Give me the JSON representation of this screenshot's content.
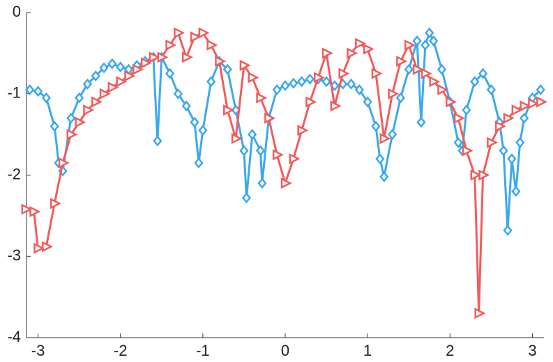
{
  "chart_data": {
    "type": "line",
    "xlim": [
      -3.14,
      3.14
    ],
    "ylim": [
      -4,
      0
    ],
    "xticks": [
      -3,
      -2,
      -1,
      0,
      1,
      2,
      3
    ],
    "yticks": [
      -4,
      -3,
      -2,
      -1,
      0
    ],
    "series": [
      {
        "name": "diamonds",
        "marker": "diamond",
        "color": "#3ca8f0",
        "x": [
          -3.1,
          -3.0,
          -2.9,
          -2.8,
          -2.75,
          -2.7,
          -2.6,
          -2.5,
          -2.4,
          -2.3,
          -2.2,
          -2.1,
          -2.0,
          -1.9,
          -1.8,
          -1.7,
          -1.6,
          -1.55,
          -1.5,
          -1.4,
          -1.3,
          -1.2,
          -1.1,
          -1.05,
          -1.0,
          -0.9,
          -0.8,
          -0.7,
          -0.6,
          -0.5,
          -0.47,
          -0.4,
          -0.3,
          -0.28,
          -0.2,
          -0.1,
          0,
          0.1,
          0.2,
          0.3,
          0.4,
          0.5,
          0.6,
          0.7,
          0.8,
          0.9,
          1.0,
          1.1,
          1.15,
          1.2,
          1.3,
          1.4,
          1.5,
          1.6,
          1.65,
          1.7,
          1.75,
          1.8,
          1.9,
          2.0,
          2.1,
          2.15,
          2.2,
          2.3,
          2.4,
          2.5,
          2.6,
          2.65,
          2.7,
          2.75,
          2.8,
          2.85,
          2.9,
          3.0,
          3.1
        ],
        "values": [
          -0.95,
          -0.97,
          -1.05,
          -1.4,
          -1.85,
          -1.95,
          -1.3,
          -1.05,
          -0.88,
          -0.78,
          -0.68,
          -0.63,
          -0.67,
          -0.7,
          -0.65,
          -0.6,
          -0.55,
          -1.58,
          -0.55,
          -0.75,
          -1.0,
          -1.15,
          -1.35,
          -1.85,
          -1.45,
          -0.85,
          -0.6,
          -0.7,
          -1.2,
          -1.7,
          -2.28,
          -1.5,
          -1.7,
          -2.1,
          -1.3,
          -0.95,
          -0.9,
          -0.87,
          -0.85,
          -0.82,
          -0.82,
          -0.85,
          -0.9,
          -0.88,
          -0.88,
          -0.95,
          -1.1,
          -1.4,
          -1.8,
          -2.02,
          -1.5,
          -1.05,
          -0.7,
          -0.35,
          -1.35,
          -0.4,
          -0.25,
          -0.35,
          -0.7,
          -1.1,
          -1.6,
          -1.7,
          -1.2,
          -0.85,
          -0.75,
          -0.95,
          -1.35,
          -1.7,
          -2.68,
          -1.8,
          -2.2,
          -1.6,
          -1.3,
          -1.05,
          -0.95
        ]
      },
      {
        "name": "triangles",
        "marker": "triangle-right",
        "color": "#f25c5c",
        "x": [
          -3.15,
          -3.05,
          -3.0,
          -2.9,
          -2.8,
          -2.7,
          -2.6,
          -2.5,
          -2.4,
          -2.3,
          -2.2,
          -2.1,
          -2.0,
          -1.9,
          -1.8,
          -1.7,
          -1.6,
          -1.5,
          -1.4,
          -1.3,
          -1.2,
          -1.1,
          -1.0,
          -0.9,
          -0.8,
          -0.7,
          -0.6,
          -0.5,
          -0.4,
          -0.3,
          -0.2,
          -0.1,
          0,
          0.1,
          0.2,
          0.3,
          0.4,
          0.5,
          0.6,
          0.7,
          0.8,
          0.9,
          1.0,
          1.1,
          1.2,
          1.3,
          1.4,
          1.5,
          1.6,
          1.7,
          1.8,
          1.9,
          2.0,
          2.1,
          2.2,
          2.3,
          2.35,
          2.4,
          2.5,
          2.6,
          2.7,
          2.8,
          2.9,
          3.0,
          3.1
        ],
        "values": [
          -2.42,
          -2.45,
          -2.9,
          -2.88,
          -2.35,
          -1.85,
          -1.5,
          -1.35,
          -1.2,
          -1.1,
          -1.0,
          -0.92,
          -0.85,
          -0.78,
          -0.7,
          -0.62,
          -0.55,
          -0.55,
          -0.4,
          -0.25,
          -0.55,
          -0.3,
          -0.25,
          -0.4,
          -0.6,
          -1.2,
          -1.55,
          -0.65,
          -0.8,
          -1.05,
          -1.3,
          -1.75,
          -2.1,
          -1.8,
          -1.45,
          -1.1,
          -0.8,
          -0.5,
          -1.15,
          -0.75,
          -0.5,
          -0.38,
          -0.45,
          -0.75,
          -1.55,
          -1.0,
          -0.6,
          -0.4,
          -0.7,
          -0.75,
          -0.85,
          -0.95,
          -1.1,
          -1.3,
          -1.7,
          -2.0,
          -3.7,
          -2.0,
          -1.6,
          -1.4,
          -1.3,
          -1.2,
          -1.15,
          -1.12,
          -1.1
        ]
      }
    ]
  }
}
